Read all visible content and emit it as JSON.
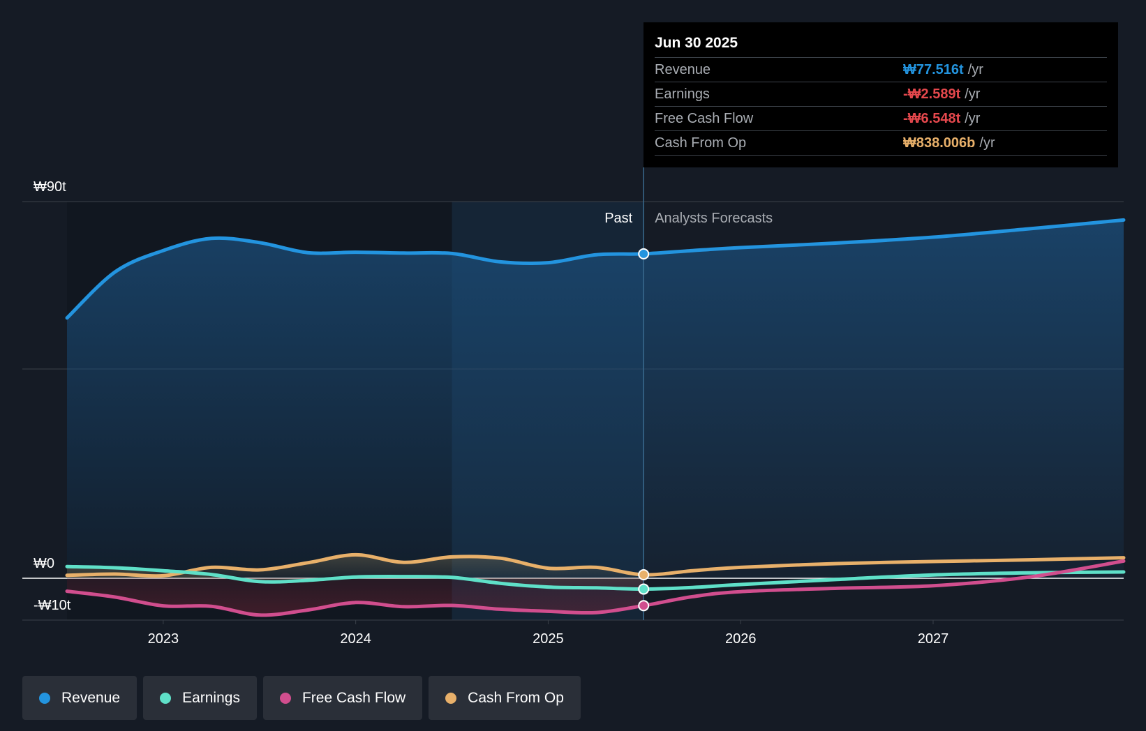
{
  "chart_data": {
    "type": "line",
    "y_unit": "₩ trillion",
    "ylim": [
      -10,
      90
    ],
    "y_tick_labels": [
      {
        "value": 90,
        "label": "₩90t"
      },
      {
        "value": 0,
        "label": "₩0"
      },
      {
        "value": -10,
        "label": "-₩10t"
      }
    ],
    "gridlines": [
      90,
      50,
      0,
      -10
    ],
    "xlim": [
      2022.5,
      2027.99
    ],
    "x_ticks": [
      {
        "value": 2023.0,
        "label": "2023"
      },
      {
        "value": 2024.0,
        "label": "2024"
      },
      {
        "value": 2025.0,
        "label": "2025"
      },
      {
        "value": 2026.0,
        "label": "2026"
      },
      {
        "value": 2027.0,
        "label": "2027"
      }
    ],
    "past_shade_start": 2024.5,
    "divider_x": 2025.496,
    "past_label": "Past",
    "forecast_label": "Analysts Forecasts",
    "series": [
      {
        "name": "Revenue",
        "color": "#2394df",
        "points": [
          [
            2022.5,
            62.2
          ],
          [
            2022.75,
            73.2
          ],
          [
            2023.0,
            78.3
          ],
          [
            2023.25,
            81.2
          ],
          [
            2023.5,
            80.2
          ],
          [
            2023.75,
            77.8
          ],
          [
            2024.0,
            77.9
          ],
          [
            2024.25,
            77.7
          ],
          [
            2024.5,
            77.6
          ],
          [
            2024.75,
            75.6
          ],
          [
            2025.0,
            75.4
          ],
          [
            2025.25,
            77.3
          ],
          [
            2025.496,
            77.516
          ],
          [
            2025.75,
            78.3
          ],
          [
            2026.0,
            79.0
          ],
          [
            2026.5,
            80.1
          ],
          [
            2027.0,
            81.5
          ],
          [
            2027.5,
            83.5
          ],
          [
            2027.99,
            85.6
          ]
        ],
        "forecast_from": 2025.496
      },
      {
        "name": "Earnings",
        "color": "#5fe0c8",
        "points": [
          [
            2022.5,
            2.8
          ],
          [
            2022.75,
            2.5
          ],
          [
            2023.0,
            1.8
          ],
          [
            2023.25,
            0.9
          ],
          [
            2023.5,
            -0.8
          ],
          [
            2023.75,
            -0.5
          ],
          [
            2024.0,
            0.3
          ],
          [
            2024.25,
            0.4
          ],
          [
            2024.5,
            0.2
          ],
          [
            2024.75,
            -1.2
          ],
          [
            2025.0,
            -2.1
          ],
          [
            2025.25,
            -2.3
          ],
          [
            2025.496,
            -2.589
          ],
          [
            2025.75,
            -2.2
          ],
          [
            2026.0,
            -1.5
          ],
          [
            2026.5,
            -0.3
          ],
          [
            2027.0,
            0.8
          ],
          [
            2027.5,
            1.3
          ],
          [
            2027.99,
            1.5
          ]
        ],
        "forecast_from": 2025.496
      },
      {
        "name": "Free Cash Flow",
        "color": "#d14e8e",
        "points": [
          [
            2022.5,
            -3.1
          ],
          [
            2022.75,
            -4.5
          ],
          [
            2023.0,
            -6.6
          ],
          [
            2023.25,
            -6.7
          ],
          [
            2023.5,
            -8.8
          ],
          [
            2023.75,
            -7.6
          ],
          [
            2024.0,
            -5.8
          ],
          [
            2024.25,
            -6.8
          ],
          [
            2024.5,
            -6.5
          ],
          [
            2024.75,
            -7.4
          ],
          [
            2025.0,
            -7.9
          ],
          [
            2025.25,
            -8.2
          ],
          [
            2025.496,
            -6.548
          ],
          [
            2025.75,
            -4.4
          ],
          [
            2026.0,
            -3.2
          ],
          [
            2026.5,
            -2.4
          ],
          [
            2027.0,
            -1.8
          ],
          [
            2027.5,
            0.3
          ],
          [
            2027.99,
            4.1
          ]
        ],
        "forecast_from": 2025.496
      },
      {
        "name": "Cash From Op",
        "color": "#e8b06a",
        "points": [
          [
            2022.5,
            0.7
          ],
          [
            2022.75,
            1.0
          ],
          [
            2023.0,
            0.6
          ],
          [
            2023.25,
            2.6
          ],
          [
            2023.5,
            2.0
          ],
          [
            2023.75,
            3.7
          ],
          [
            2024.0,
            5.6
          ],
          [
            2024.25,
            3.8
          ],
          [
            2024.5,
            5.1
          ],
          [
            2024.75,
            4.8
          ],
          [
            2025.0,
            2.4
          ],
          [
            2025.25,
            2.6
          ],
          [
            2025.496,
            0.838
          ],
          [
            2025.75,
            1.8
          ],
          [
            2026.0,
            2.6
          ],
          [
            2026.5,
            3.5
          ],
          [
            2027.0,
            4.0
          ],
          [
            2027.5,
            4.4
          ],
          [
            2027.99,
            4.9
          ]
        ],
        "forecast_from": 2025.496
      }
    ]
  },
  "tooltip": {
    "date": "Jun 30 2025",
    "rows": [
      {
        "name": "Revenue",
        "value": "₩77.516t",
        "unit": "/yr",
        "color": "#2394df"
      },
      {
        "name": "Earnings",
        "value": "-₩2.589t",
        "unit": "/yr",
        "color": "#e5484d"
      },
      {
        "name": "Free Cash Flow",
        "value": "-₩6.548t",
        "unit": "/yr",
        "color": "#e5484d"
      },
      {
        "name": "Cash From Op",
        "value": "₩838.006b",
        "unit": "/yr",
        "color": "#e8b06a"
      }
    ]
  },
  "legend": [
    {
      "label": "Revenue",
      "color": "#2394df"
    },
    {
      "label": "Earnings",
      "color": "#5fe0c8"
    },
    {
      "label": "Free Cash Flow",
      "color": "#d14e8e"
    },
    {
      "label": "Cash From Op",
      "color": "#e8b06a"
    }
  ]
}
